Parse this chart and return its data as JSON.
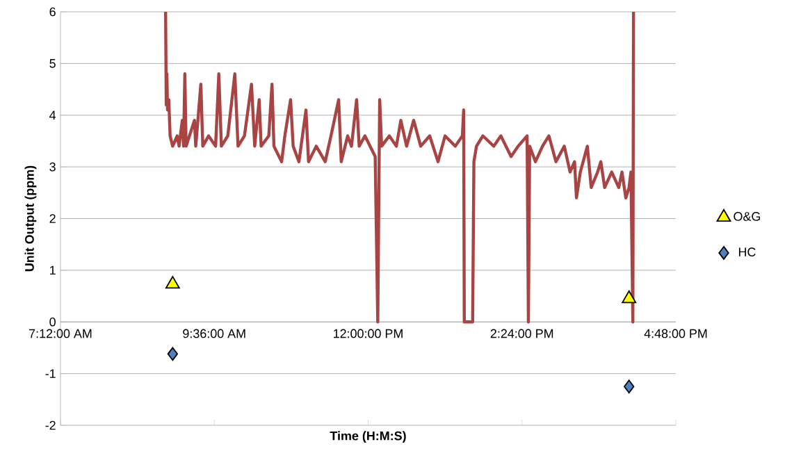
{
  "chart_data": {
    "type": "line",
    "xlabel": "Time (H:M:S)",
    "ylabel": "Unit Output (ppm)",
    "xlim": [
      7.2,
      16.8
    ],
    "xticks": [
      {
        "value": 7.2,
        "label": "7:12:00 AM"
      },
      {
        "value": 9.6,
        "label": "9:36:00 AM"
      },
      {
        "value": 12,
        "label": "12:00:00 PM"
      },
      {
        "value": 14.4,
        "label": "2:24:00 PM"
      },
      {
        "value": 16.8,
        "label": "4:48:00 PM"
      }
    ],
    "ylim": [
      -2,
      6
    ],
    "yticks": [
      -2,
      -1,
      0,
      1,
      2,
      3,
      4,
      5,
      6
    ],
    "grid": "y",
    "legend": "right",
    "series": [
      {
        "color": "#a84444",
        "x": [
          8.84,
          8.85,
          8.86,
          8.87,
          8.89,
          8.91,
          8.95,
          9.02,
          9.05,
          9.1,
          9.12,
          9.14,
          9.16,
          9.29,
          9.31,
          9.39,
          9.42,
          9.51,
          9.62,
          9.67,
          9.71,
          9.81,
          9.92,
          9.97,
          10.07,
          10.18,
          10.23,
          10.3,
          10.33,
          10.45,
          10.5,
          10.53,
          10.65,
          10.7,
          10.79,
          10.83,
          10.92,
          11.03,
          11.07,
          11.19,
          11.33,
          11.42,
          11.54,
          11.58,
          11.68,
          11.74,
          11.82,
          11.86,
          11.95,
          12.03,
          12.11,
          12.15,
          12.18,
          12.21,
          12.33,
          12.44,
          12.51,
          12.6,
          12.71,
          12.82,
          12.96,
          13.09,
          13.2,
          13.36,
          13.47,
          13.49,
          13.5,
          13.63,
          13.65,
          13.69,
          13.79,
          13.96,
          14.07,
          14.23,
          14.34,
          14.48,
          14.5,
          14.52,
          14.61,
          14.72,
          14.82,
          14.93,
          15.06,
          15.15,
          15.22,
          15.25,
          15.31,
          15.42,
          15.48,
          15.58,
          15.63,
          15.69,
          15.8,
          15.91,
          15.96,
          16.02,
          16.07,
          16.1,
          16.13,
          16.14
        ],
        "values": [
          6.0,
          4.2,
          4.8,
          4.1,
          4.3,
          3.6,
          3.4,
          3.6,
          3.4,
          3.9,
          3.4,
          4.8,
          3.4,
          3.9,
          3.4,
          4.6,
          3.4,
          3.6,
          3.4,
          4.8,
          3.4,
          3.6,
          4.8,
          3.4,
          3.6,
          4.6,
          3.4,
          4.3,
          3.4,
          3.6,
          4.6,
          3.4,
          3.1,
          3.6,
          4.3,
          3.4,
          3.1,
          4.1,
          3.1,
          3.4,
          3.1,
          3.6,
          4.3,
          3.1,
          3.6,
          3.4,
          4.3,
          3.4,
          3.6,
          3.4,
          3.2,
          0,
          4.3,
          3.4,
          3.6,
          3.4,
          3.9,
          3.4,
          3.9,
          3.4,
          3.6,
          3.1,
          3.6,
          3.4,
          3.6,
          4.1,
          0,
          0,
          3.1,
          3.4,
          3.6,
          3.4,
          3.6,
          3.2,
          3.4,
          3.6,
          0,
          3.4,
          3.1,
          3.4,
          3.6,
          3.1,
          3.4,
          2.9,
          3.1,
          2.4,
          2.9,
          3.4,
          2.6,
          2.9,
          3.1,
          2.6,
          2.9,
          2.6,
          2.9,
          2.4,
          2.6,
          2.9,
          0,
          6.0
        ]
      },
      {
        "type": "scatter",
        "name": "O&G",
        "color": "#ffff00",
        "marker": "triangle",
        "x": [
          8.95,
          16.07
        ],
        "values": [
          0.73,
          0.45
        ]
      },
      {
        "type": "scatter",
        "name": "HC",
        "color": "#4f81bd",
        "marker": "diamond",
        "x": [
          8.95,
          16.07
        ],
        "values": [
          -0.62,
          -1.25
        ]
      }
    ]
  }
}
